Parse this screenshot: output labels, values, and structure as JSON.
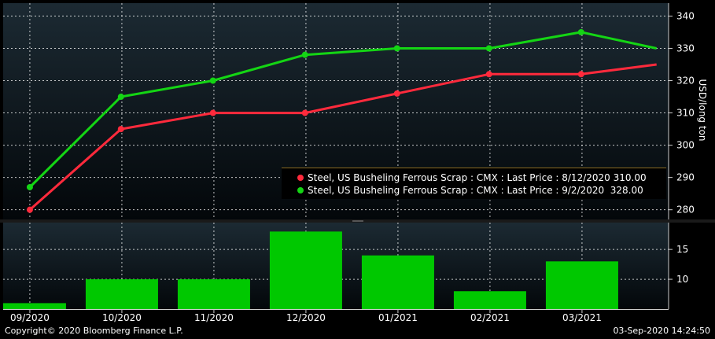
{
  "chart_data": [
    {
      "type": "line",
      "ylabel": "USD/long ton",
      "ylim": [
        277,
        344
      ],
      "yticks": [
        280,
        290,
        300,
        310,
        320,
        330,
        340
      ],
      "grid": true,
      "legend_position": "bottom-right",
      "series": [
        {
          "name": "Steel, US Busheling Ferrous Scrap : CMX : Last Price : 8/12/2020 310.00",
          "color": "#ff2a3c",
          "x": [
            0.29,
            1.28,
            2.28,
            3.28,
            4.28,
            5.28,
            6.28,
            7.1
          ],
          "values": [
            280,
            305,
            310,
            310,
            316,
            322,
            322,
            325
          ]
        },
        {
          "name": "Steel, US Busheling Ferrous Scrap : CMX : Last Price : 9/2/2020  328.00",
          "color": "#14d514",
          "x": [
            0.29,
            1.28,
            2.28,
            3.28,
            4.28,
            5.28,
            6.28,
            7.1
          ],
          "values": [
            287,
            315,
            320,
            328,
            330,
            330,
            335,
            330
          ]
        }
      ]
    },
    {
      "type": "bar",
      "categories": [
        "09/2020",
        "10/2020",
        "11/2020",
        "12/2020",
        "01/2021",
        "02/2021",
        "03/2021"
      ],
      "values": [
        6,
        10,
        10,
        18,
        14,
        8,
        13
      ],
      "color": "#00c800",
      "ylim": [
        5,
        19.5
      ],
      "yticks": [
        10,
        15
      ],
      "grid": true
    }
  ],
  "footer": {
    "copyright": "Copyright© 2020 Bloomberg Finance L.P.",
    "timestamp": "03-Sep-2020 14:24:50"
  }
}
